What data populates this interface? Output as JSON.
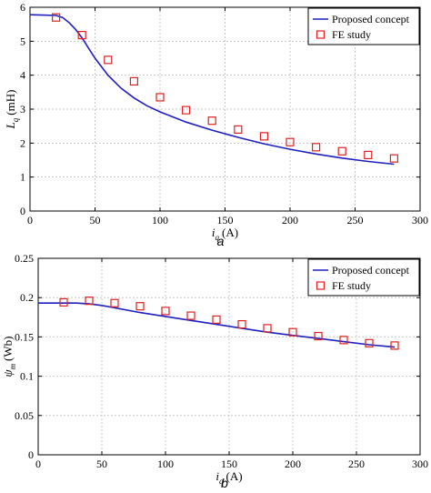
{
  "colors": {
    "line": "#1f1fbf",
    "marker": "#e02020"
  },
  "chart_data": [
    {
      "type": "line",
      "panel_label": "a",
      "xlabel": "i_q (A)",
      "xlabel_main": "i",
      "xlabel_sub": "q",
      "xlabel_unit": "(A)",
      "ylabel": "L_q (mH)",
      "ylabel_main": "L",
      "ylabel_sub": "q",
      "ylabel_unit": "(mH)",
      "xlim": [
        0,
        300
      ],
      "ylim": [
        0,
        6
      ],
      "xticks": [
        0,
        50,
        100,
        150,
        200,
        250,
        300
      ],
      "xtick_labels": [
        "0",
        "50",
        "100",
        "150",
        "200",
        "250",
        "300"
      ],
      "yticks": [
        0,
        1,
        2,
        3,
        4,
        5,
        6
      ],
      "ytick_labels": [
        "0",
        "1",
        "2",
        "3",
        "4",
        "5",
        "6"
      ],
      "grid": true,
      "legend_position": "top-right",
      "series": [
        {
          "name": "Proposed concept",
          "style": "line",
          "x": [
            0,
            10,
            20,
            25,
            30,
            35,
            40,
            45,
            50,
            60,
            70,
            80,
            90,
            100,
            120,
            140,
            160,
            180,
            200,
            220,
            240,
            260,
            280
          ],
          "y": [
            5.78,
            5.77,
            5.76,
            5.7,
            5.55,
            5.35,
            5.1,
            4.8,
            4.5,
            4.0,
            3.62,
            3.33,
            3.1,
            2.92,
            2.62,
            2.38,
            2.17,
            1.98,
            1.82,
            1.68,
            1.56,
            1.46,
            1.38
          ]
        },
        {
          "name": "FE study",
          "style": "square-marker",
          "x": [
            20,
            40,
            60,
            80,
            100,
            120,
            140,
            160,
            180,
            200,
            220,
            240,
            260,
            280
          ],
          "y": [
            5.7,
            5.18,
            4.45,
            3.82,
            3.35,
            2.97,
            2.66,
            2.4,
            2.2,
            2.03,
            1.88,
            1.76,
            1.65,
            1.55
          ]
        }
      ]
    },
    {
      "type": "line",
      "panel_label": "b",
      "xlabel": "i_q (A)",
      "xlabel_main": "i",
      "xlabel_sub": "q",
      "xlabel_unit": "(A)",
      "ylabel": "ψ_m (Wb)",
      "ylabel_main": "ψ",
      "ylabel_sub": "m",
      "ylabel_unit": "(Wb)",
      "xlim": [
        0,
        300
      ],
      "ylim": [
        0,
        0.25
      ],
      "xticks": [
        0,
        50,
        100,
        150,
        200,
        250,
        300
      ],
      "xtick_labels": [
        "0",
        "50",
        "100",
        "150",
        "200",
        "250",
        "300"
      ],
      "yticks": [
        0,
        0.05,
        0.1,
        0.15,
        0.2,
        0.25
      ],
      "ytick_labels": [
        "0",
        "0.05",
        "0.1",
        "0.15",
        "0.2",
        "0.25"
      ],
      "grid": true,
      "legend_position": "top-right",
      "series": [
        {
          "name": "Proposed concept",
          "style": "line",
          "x": [
            0,
            20,
            30,
            40,
            50,
            60,
            80,
            100,
            120,
            140,
            160,
            180,
            200,
            220,
            240,
            260,
            280
          ],
          "y": [
            0.193,
            0.193,
            0.193,
            0.192,
            0.19,
            0.187,
            0.181,
            0.176,
            0.171,
            0.166,
            0.161,
            0.156,
            0.152,
            0.148,
            0.144,
            0.14,
            0.137
          ]
        },
        {
          "name": "FE study",
          "style": "square-marker",
          "x": [
            20,
            40,
            60,
            80,
            100,
            120,
            140,
            160,
            180,
            200,
            220,
            240,
            260,
            280
          ],
          "y": [
            0.194,
            0.196,
            0.193,
            0.189,
            0.183,
            0.177,
            0.172,
            0.166,
            0.161,
            0.156,
            0.151,
            0.146,
            0.142,
            0.139
          ]
        }
      ]
    }
  ]
}
